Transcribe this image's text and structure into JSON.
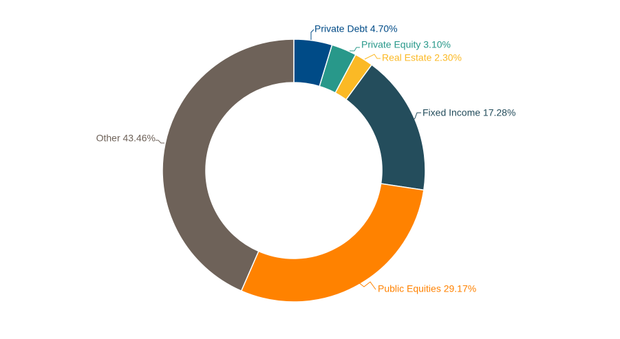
{
  "chart_data": {
    "type": "pie",
    "title": "",
    "series": [
      {
        "name": "",
        "slices": [
          {
            "label": "Private Debt",
            "value": 4.7,
            "value_label": "4.70%",
            "color": "#004b87"
          },
          {
            "label": "Private Equity",
            "value": 3.1,
            "value_label": "3.10%",
            "color": "#28988a"
          },
          {
            "label": "Real Estate",
            "value": 2.3,
            "value_label": "2.30%",
            "color": "#fbb925"
          },
          {
            "label": "Fixed Income",
            "value": 17.28,
            "value_label": "17.28%",
            "color": "#244d5c"
          },
          {
            "label": "Public Equities",
            "value": 29.17,
            "value_label": "29.17%",
            "color": "#ff8200"
          },
          {
            "label": "Other",
            "value": 43.46,
            "value_label": "43.46%",
            "color": "#6e6259"
          }
        ]
      }
    ],
    "donut": true,
    "legend": "none",
    "data_labels": "outside with leader lines"
  }
}
